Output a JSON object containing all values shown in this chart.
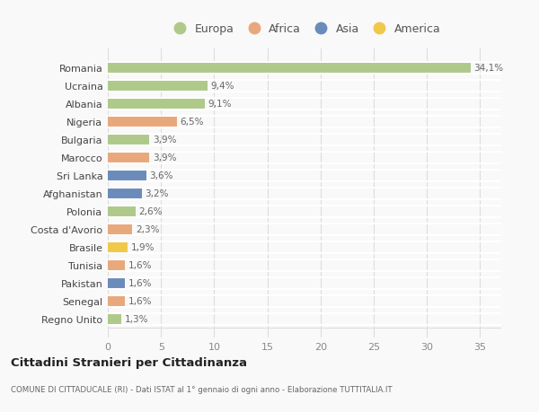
{
  "countries": [
    "Romania",
    "Ucraina",
    "Albania",
    "Nigeria",
    "Bulgaria",
    "Marocco",
    "Sri Lanka",
    "Afghanistan",
    "Polonia",
    "Costa d'Avorio",
    "Brasile",
    "Tunisia",
    "Pakistan",
    "Senegal",
    "Regno Unito"
  ],
  "values": [
    34.1,
    9.4,
    9.1,
    6.5,
    3.9,
    3.9,
    3.6,
    3.2,
    2.6,
    2.3,
    1.9,
    1.6,
    1.6,
    1.6,
    1.3
  ],
  "labels": [
    "34,1%",
    "9,4%",
    "9,1%",
    "6,5%",
    "3,9%",
    "3,9%",
    "3,6%",
    "3,2%",
    "2,6%",
    "2,3%",
    "1,9%",
    "1,6%",
    "1,6%",
    "1,6%",
    "1,3%"
  ],
  "colors": [
    "#aec98a",
    "#aec98a",
    "#aec98a",
    "#e8a87c",
    "#aec98a",
    "#e8a87c",
    "#6b8cba",
    "#6b8cba",
    "#aec98a",
    "#e8a87c",
    "#f0c84a",
    "#e8a87c",
    "#6b8cba",
    "#e8a87c",
    "#aec98a"
  ],
  "legend_labels": [
    "Europa",
    "Africa",
    "Asia",
    "America"
  ],
  "legend_colors": [
    "#aec98a",
    "#e8a87c",
    "#6b8cba",
    "#f0c84a"
  ],
  "title": "Cittadini Stranieri per Cittadinanza",
  "subtitle": "COMUNE DI CITTADUCALE (RI) - Dati ISTAT al 1° gennaio di ogni anno - Elaborazione TUTTITALIA.IT",
  "xlim": [
    0,
    37
  ],
  "xticks": [
    0,
    5,
    10,
    15,
    20,
    25,
    30,
    35
  ],
  "background_color": "#f9f9f9",
  "label_color": "#666666",
  "grid_color": "#dddddd",
  "tick_color": "#888888"
}
